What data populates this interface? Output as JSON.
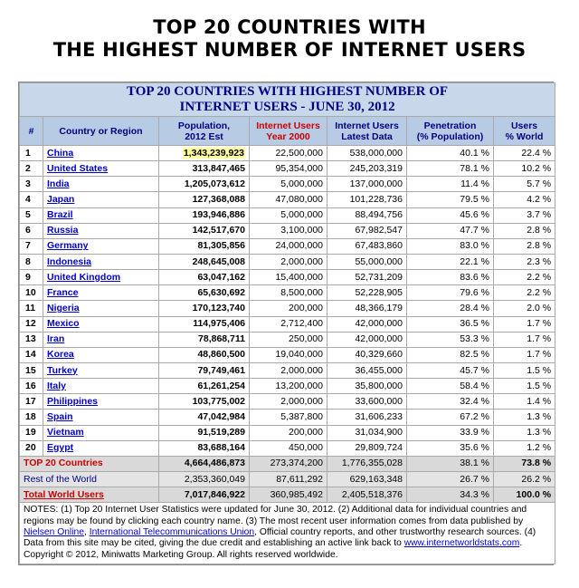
{
  "headline": {
    "line1": "TOP 20 COUNTRIES WITH",
    "line2": "THE HIGHEST NUMBER OF INTERNET USERS"
  },
  "table": {
    "title_line1": "TOP 20 COUNTRIES WITH HIGHEST NUMBER OF",
    "title_line2": "INTERNET USERS - JUNE 30, 2012",
    "columns": {
      "rank": "#",
      "country": "Country or Region",
      "population_l1": "Population,",
      "population_l2": "2012 Est",
      "users2000_l1": "Internet Users",
      "users2000_l2": "Year 2000",
      "latest_l1": "Internet Users",
      "latest_l2": "Latest Data",
      "penetration_l1": "Penetration",
      "penetration_l2": "(% Population)",
      "share_l1": "Users",
      "share_l2": "% World"
    },
    "rows": [
      {
        "rank": "1",
        "country": "China",
        "population": "1,343,239,923",
        "users2000": "22,500,000",
        "latest": "538,000,000",
        "penetration": "40.1 %",
        "share": "22.4 %"
      },
      {
        "rank": "2",
        "country": "United States",
        "population": "313,847,465",
        "users2000": "95,354,000",
        "latest": "245,203,319",
        "penetration": "78.1 %",
        "share": "10.2 %"
      },
      {
        "rank": "3",
        "country": "India",
        "population": "1,205,073,612",
        "users2000": "5,000,000",
        "latest": "137,000,000",
        "penetration": "11.4 %",
        "share": "5.7 %"
      },
      {
        "rank": "4",
        "country": "Japan",
        "population": "127,368,088",
        "users2000": "47,080,000",
        "latest": "101,228,736",
        "penetration": "79.5 %",
        "share": "4.2 %"
      },
      {
        "rank": "5",
        "country": "Brazil",
        "population": "193,946,886",
        "users2000": "5,000,000",
        "latest": "88,494,756",
        "penetration": "45.6 %",
        "share": "3.7 %"
      },
      {
        "rank": "6",
        "country": "Russia",
        "population": "142,517,670",
        "users2000": "3,100,000",
        "latest": "67,982,547",
        "penetration": "47.7 %",
        "share": "2.8 %"
      },
      {
        "rank": "7",
        "country": "Germany",
        "population": "81,305,856",
        "users2000": "24,000,000",
        "latest": "67,483,860",
        "penetration": "83.0 %",
        "share": "2.8 %"
      },
      {
        "rank": "8",
        "country": "Indonesia",
        "population": "248,645,008",
        "users2000": "2,000,000",
        "latest": "55,000,000",
        "penetration": "22.1 %",
        "share": "2.3 %"
      },
      {
        "rank": "9",
        "country": "United Kingdom",
        "population": "63,047,162",
        "users2000": "15,400,000",
        "latest": "52,731,209",
        "penetration": "83.6 %",
        "share": "2.2 %"
      },
      {
        "rank": "10",
        "country": "France",
        "population": "65,630,692",
        "users2000": "8,500,000",
        "latest": "52,228,905",
        "penetration": "79.6 %",
        "share": "2.2 %"
      },
      {
        "rank": "11",
        "country": "Nigeria",
        "population": "170,123,740",
        "users2000": "200,000",
        "latest": "48,366,179",
        "penetration": "28.4 %",
        "share": "2.0 %"
      },
      {
        "rank": "12",
        "country": "Mexico",
        "population": "114,975,406",
        "users2000": "2,712,400",
        "latest": "42,000,000",
        "penetration": "36.5 %",
        "share": "1.7 %"
      },
      {
        "rank": "13",
        "country": "Iran",
        "population": "78,868,711",
        "users2000": "250,000",
        "latest": "42,000,000",
        "penetration": "53.3 %",
        "share": "1.7 %"
      },
      {
        "rank": "14",
        "country": "Korea",
        "population": "48,860,500",
        "users2000": "19,040,000",
        "latest": "40,329,660",
        "penetration": "82.5 %",
        "share": "1.7 %"
      },
      {
        "rank": "15",
        "country": "Turkey",
        "population": "79,749,461",
        "users2000": "2,000,000",
        "latest": "36,455,000",
        "penetration": "45.7 %",
        "share": "1.5 %"
      },
      {
        "rank": "16",
        "country": "Italy",
        "population": "61,261,254",
        "users2000": "13,200,000",
        "latest": "35,800,000",
        "penetration": "58.4 %",
        "share": "1.5 %"
      },
      {
        "rank": "17",
        "country": "Philippines",
        "population": "103,775,002",
        "users2000": "2,000,000",
        "latest": "33,600,000",
        "penetration": "32.4 %",
        "share": "1.4 %"
      },
      {
        "rank": "18",
        "country": "Spain",
        "population": "47,042,984",
        "users2000": "5,387,800",
        "latest": "31,606,233",
        "penetration": "67.2 %",
        "share": "1.3 %"
      },
      {
        "rank": "19",
        "country": "Vietnam",
        "population": "91,519,289",
        "users2000": "200,000",
        "latest": "31,034,900",
        "penetration": "33.9 %",
        "share": "1.3 %"
      },
      {
        "rank": "20",
        "country": "Egypt",
        "population": "83,688,164",
        "users2000": "450,000",
        "latest": "29,809,724",
        "penetration": "35.6 %",
        "share": "1.2 %"
      }
    ],
    "summary": [
      {
        "label": "TOP 20 Countries",
        "population": "4,664,486,873",
        "users2000": "273,374,200",
        "latest": "1,776,355,028",
        "penetration": "38.1 %",
        "share": "73.8 %"
      },
      {
        "label": "Rest of the World",
        "population": "2,353,360,049",
        "users2000": "87,611,292",
        "latest": "629,163,348",
        "penetration": "26.7 %",
        "share": "26.2 %"
      },
      {
        "label": "Total World Users",
        "population": "7,017,846,922",
        "users2000": "360,985,492",
        "latest": "2,405,518,376",
        "penetration": "34.3 %",
        "share": "100.0 %"
      }
    ]
  },
  "notes": {
    "part1": "NOTES: (1) Top 20 Internet User Statistics were updated for June 30, 2012. (2) Additional data for individual countries and regions may be found by clicking each country name. (3) The most recent user information comes from data published by ",
    "link_nielsen": "Nielsen Online",
    "sep1": ", ",
    "link_itu": "International Telecommunications Union",
    "part2": ", Official country reports, and other trustworthy research sources. (4) Data from this site may be cited, giving the due credit and establishing an active link back to ",
    "link_site": "www.internetworldstats.com",
    "part3": ".",
    "copyright": "Copyright © 2012, Miniwatts Marketing Group. All rights reserved worldwide."
  }
}
